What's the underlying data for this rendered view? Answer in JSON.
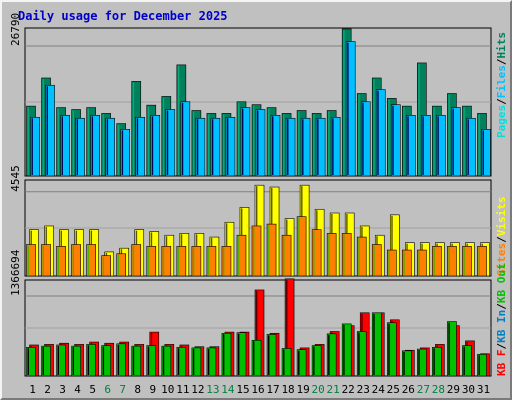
{
  "title": "Daily usage for December 2025",
  "colors": {
    "hits": "#00805c",
    "files": "#00c0ff",
    "pages": "#00e0e0",
    "visits": "#ffff00",
    "sites": "#ff8000",
    "kb_out": "#00c000",
    "kb_in": "#0080c0",
    "kb_f": "#ff0000",
    "weekday": "#000000",
    "weekend": "#008040"
  },
  "chart_data": [
    {
      "type": "bar",
      "x": [
        "1",
        "2",
        "3",
        "4",
        "5",
        "6",
        "7",
        "8",
        "9",
        "10",
        "11",
        "12",
        "13",
        "14",
        "15",
        "16",
        "17",
        "18",
        "19",
        "20",
        "21",
        "22",
        "23",
        "24",
        "25",
        "26",
        "27",
        "28",
        "29",
        "30",
        "31"
      ],
      "weekend_days": [
        "6",
        "7",
        "13",
        "14",
        "20",
        "21",
        "27",
        "28"
      ],
      "ytick": "26790",
      "ylim": [
        0,
        30500
      ],
      "series": [
        {
          "name": "Hits",
          "values": [
            14400,
            20200,
            14100,
            13700,
            14100,
            12900,
            10800,
            19500,
            14600,
            16400,
            22900,
            13500,
            12900,
            12900,
            15300,
            14700,
            14100,
            12900,
            13500,
            12900,
            13500,
            30300,
            17000,
            20200,
            16000,
            14400,
            23300,
            14400,
            17000,
            14400,
            12900
          ]
        },
        {
          "name": "Files",
          "values": [
            12100,
            18700,
            12500,
            11900,
            12500,
            11900,
            9600,
            12100,
            12500,
            13700,
            15300,
            11900,
            11900,
            12100,
            14100,
            13700,
            12500,
            11900,
            11900,
            11900,
            12100,
            27700,
            15300,
            17800,
            14700,
            12500,
            12500,
            12500,
            14100,
            11900,
            9600
          ]
        },
        {
          "name": "Pages",
          "values": [
            4300,
            6000,
            4100,
            4000,
            4100,
            3800,
            3400,
            5000,
            4000,
            4300,
            6300,
            4000,
            3800,
            3800,
            4300,
            4300,
            3800,
            3800,
            4000,
            4000,
            4000,
            8500,
            5000,
            5500,
            4500,
            4000,
            6000,
            4000,
            4500,
            4000,
            3800
          ]
        }
      ]
    },
    {
      "type": "bar",
      "x": [
        "1",
        "2",
        "3",
        "4",
        "5",
        "6",
        "7",
        "8",
        "9",
        "10",
        "11",
        "12",
        "13",
        "14",
        "15",
        "16",
        "17",
        "18",
        "19",
        "20",
        "21",
        "22",
        "23",
        "24",
        "25",
        "26",
        "27",
        "28",
        "29",
        "30",
        "31"
      ],
      "ytick": "4545",
      "ylim": [
        0,
        5180
      ],
      "series": [
        {
          "name": "Visits",
          "values": [
            2500,
            2700,
            2500,
            2500,
            2500,
            1300,
            1500,
            2500,
            2400,
            2200,
            2300,
            2300,
            2100,
            2900,
            3700,
            4900,
            4800,
            3100,
            4900,
            3600,
            3400,
            3400,
            2700,
            2200,
            3300,
            1800,
            1800,
            1800,
            1800,
            1800,
            1800
          ]
        },
        {
          "name": "Sites",
          "values": [
            1700,
            1700,
            1600,
            1700,
            1700,
            1100,
            1200,
            1700,
            1600,
            1600,
            1600,
            1600,
            1600,
            1600,
            2200,
            2700,
            2800,
            2200,
            3200,
            2500,
            2300,
            2300,
            2100,
            1700,
            1400,
            1400,
            1400,
            1600,
            1600,
            1600,
            1600
          ]
        }
      ]
    },
    {
      "type": "bar",
      "x": [
        "1",
        "2",
        "3",
        "4",
        "5",
        "6",
        "7",
        "8",
        "9",
        "10",
        "11",
        "12",
        "13",
        "14",
        "15",
        "16",
        "17",
        "18",
        "19",
        "20",
        "21",
        "22",
        "23",
        "24",
        "25",
        "26",
        "27",
        "28",
        "29",
        "30",
        "31"
      ],
      "ytick": "1366694",
      "ylim": [
        0,
        1640000
      ],
      "series": [
        {
          "name": "KB F",
          "values": [
            530000,
            540000,
            560000,
            540000,
            580000,
            560000,
            580000,
            540000,
            750000,
            540000,
            530000,
            500000,
            500000,
            750000,
            750000,
            1470000,
            730000,
            1660000,
            480000,
            540000,
            760000,
            860000,
            1080000,
            1080000,
            960000,
            440000,
            480000,
            540000,
            860000,
            600000,
            380000
          ]
        },
        {
          "name": "KB In",
          "values": [
            0,
            0,
            0,
            0,
            0,
            0,
            0,
            0,
            0,
            0,
            0,
            0,
            0,
            0,
            0,
            0,
            0,
            0,
            0,
            0,
            0,
            0,
            0,
            0,
            0,
            0,
            0,
            0,
            0,
            0,
            0
          ]
        },
        {
          "name": "KB Out",
          "values": [
            490000,
            510000,
            530000,
            510000,
            540000,
            520000,
            550000,
            510000,
            520000,
            510000,
            490000,
            480000,
            480000,
            730000,
            740000,
            610000,
            710000,
            470000,
            450000,
            520000,
            720000,
            890000,
            760000,
            1080000,
            910000,
            430000,
            460000,
            490000,
            930000,
            520000,
            370000
          ]
        }
      ]
    }
  ]
}
